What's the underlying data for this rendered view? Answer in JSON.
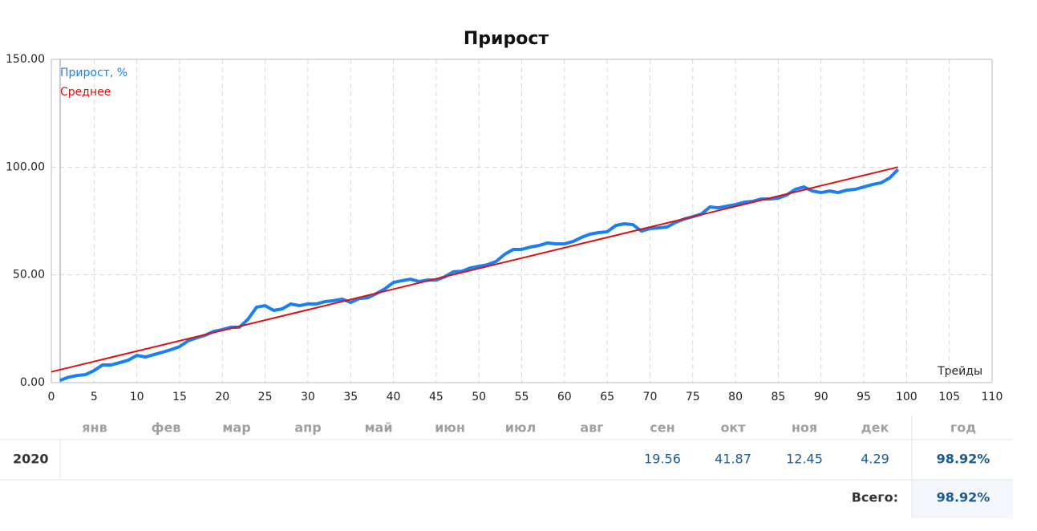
{
  "chart_data": {
    "type": "line",
    "title": "Прирост",
    "x_label": "Трейды",
    "xlim": [
      0,
      110
    ],
    "xticks": [
      0,
      5,
      10,
      15,
      20,
      25,
      30,
      35,
      40,
      45,
      50,
      55,
      60,
      65,
      70,
      75,
      80,
      85,
      90,
      95,
      100,
      105,
      110
    ],
    "ylim": [
      0,
      150
    ],
    "yticks": [
      {
        "value": 0,
        "label": "0.00"
      },
      {
        "value": 50,
        "label": "50.00"
      },
      {
        "value": 100,
        "label": "100.00"
      },
      {
        "value": 150,
        "label": "150.00"
      }
    ],
    "grid": true,
    "legend": "top-left",
    "series": [
      {
        "name": "Прирост, %",
        "color": "#1a7ff0",
        "x": [
          1,
          2,
          3,
          4,
          5,
          6,
          7,
          8,
          9,
          10,
          11,
          12,
          13,
          14,
          15,
          16,
          17,
          18,
          19,
          20,
          21,
          22,
          23,
          24,
          25,
          26,
          27,
          28,
          29,
          30,
          31,
          32,
          33,
          34,
          35,
          36,
          37,
          38,
          39,
          40,
          41,
          42,
          43,
          44,
          45,
          46,
          47,
          48,
          49,
          50,
          51,
          52,
          53,
          54,
          55,
          56,
          57,
          58,
          59,
          60,
          61,
          62,
          63,
          64,
          65,
          66,
          67,
          68,
          69,
          70,
          71,
          72,
          73,
          74,
          75,
          76,
          77,
          78,
          79,
          80,
          81,
          82,
          83,
          84,
          85,
          86,
          87,
          88,
          89,
          90,
          91,
          92,
          93,
          94,
          95,
          96,
          97,
          98,
          99
        ],
        "values": [
          1,
          2.5,
          3.3,
          3.7,
          5.6,
          8.2,
          8.2,
          9.3,
          10.4,
          12.6,
          11.9,
          13,
          14.1,
          15.3,
          16.7,
          19.4,
          20.8,
          22,
          23.8,
          24.6,
          25.7,
          25.7,
          29.4,
          35,
          35.7,
          33.5,
          34.2,
          36.5,
          35.7,
          36.5,
          36.5,
          37.6,
          38,
          38.7,
          37.2,
          39,
          39.4,
          41.3,
          43.5,
          46.5,
          47.3,
          48,
          46.9,
          47.6,
          47.6,
          49.1,
          51.4,
          51.7,
          53.2,
          54,
          54.7,
          56.2,
          59.5,
          61.8,
          61.8,
          62.9,
          63.6,
          64.8,
          64.4,
          64.4,
          65.5,
          67.4,
          68.9,
          69.6,
          70,
          72.9,
          73.7,
          73.3,
          70.3,
          71.5,
          71.8,
          72.2,
          74.4,
          75.9,
          77,
          78.2,
          81.5,
          81.1,
          81.9,
          82.6,
          83.7,
          84.1,
          85.2,
          85.2,
          85.6,
          87.1,
          89.7,
          90.8,
          88.9,
          88.2,
          88.9,
          88.2,
          89.3,
          89.7,
          90.8,
          91.9,
          92.7,
          94.9,
          98.92
        ]
      },
      {
        "name": "Среднее",
        "color": "#e01010",
        "x": [
          0,
          99
        ],
        "values": [
          5,
          100
        ]
      }
    ]
  },
  "table": {
    "header": [
      "янв",
      "фев",
      "мар",
      "апр",
      "май",
      "июн",
      "июл",
      "авг",
      "сен",
      "окт",
      "ноя",
      "дек",
      "год"
    ],
    "rows": [
      [
        "2020",
        null,
        null,
        null,
        null,
        null,
        null,
        null,
        null,
        "19.56",
        "41.87",
        "12.45",
        "4.29",
        "98.92%"
      ]
    ],
    "total_label": "Всего:",
    "total_value": "98.92%"
  }
}
